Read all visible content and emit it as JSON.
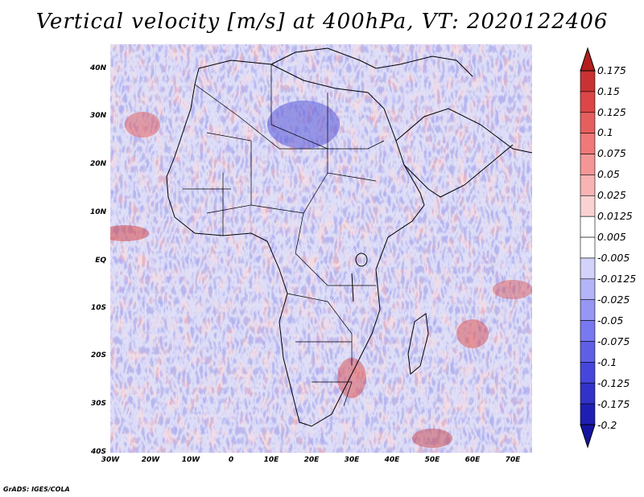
{
  "title": "Vertical velocity [m/s] at 400hPa, VT: 2020122406",
  "credit": "GrADS: IGES/COLA",
  "map": {
    "region": "Africa",
    "projection": "lat-lon",
    "lon_range": [
      -30,
      75
    ],
    "lat_range": [
      -40,
      45
    ],
    "lat_labels": [
      "40N",
      "30N",
      "20N",
      "10N",
      "EQ",
      "10S",
      "20S",
      "30S",
      "40S"
    ],
    "lon_labels": [
      "30W",
      "20W",
      "10W",
      "0",
      "10E",
      "20E",
      "30E",
      "40E",
      "50E",
      "60E",
      "70E"
    ]
  },
  "colorbar": {
    "labels": [
      "0.175",
      "0.15",
      "0.125",
      "0.1",
      "0.075",
      "0.05",
      "0.025",
      "0.0125",
      "0.005",
      "-0.005",
      "-0.0125",
      "-0.025",
      "-0.05",
      "-0.075",
      "-0.1",
      "-0.125",
      "-0.175",
      "-0.2"
    ],
    "colors": [
      "#b41e1e",
      "#c83232",
      "#dc4646",
      "#e65f5f",
      "#f07878",
      "#f59696",
      "#f8b4b4",
      "#fbd2d2",
      "#ffffff",
      "#ffffff",
      "#d2d2fb",
      "#b4b4f8",
      "#9696f5",
      "#7878f0",
      "#5f5fe6",
      "#4646dc",
      "#3232c8",
      "#1e1eb4",
      "#1414a0"
    ]
  }
}
